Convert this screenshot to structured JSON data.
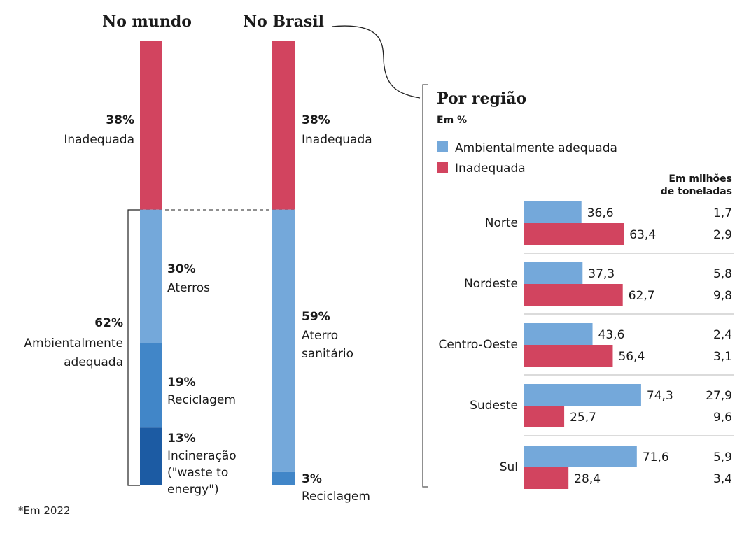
{
  "chart_data": [
    {
      "type": "bar",
      "title": "No mundo",
      "unit": "%",
      "segments": [
        {
          "pct": "38%",
          "label": "Inadequada",
          "value": 38,
          "color": "#d2445f"
        },
        {
          "pct": "30%",
          "label": "Aterros",
          "value": 30,
          "color": "#74a8da"
        },
        {
          "pct": "19%",
          "label": "Reciclagem",
          "value": 19,
          "color": "#4186c8"
        },
        {
          "pct": "13%",
          "label": "Incineração (\"waste to energy\")",
          "label_lines": [
            "Incineração",
            "(\"waste to",
            "energy\")"
          ],
          "value": 13,
          "color": "#1c5ba3"
        }
      ],
      "group": {
        "pct": "62%",
        "label": "Ambientalmente adequada",
        "label_lines": [
          "Ambientalmente",
          "adequada"
        ],
        "value": 62
      }
    },
    {
      "type": "bar",
      "title": "No Brasil",
      "unit": "%",
      "segments": [
        {
          "pct": "38%",
          "label": "Inadequada",
          "value": 38,
          "color": "#d2445f"
        },
        {
          "pct": "59%",
          "label": "Aterro sanitário",
          "label_lines": [
            "Aterro",
            "sanitário"
          ],
          "value": 59,
          "color": "#74a8da"
        },
        {
          "pct": "3%",
          "label": "Reciclagem",
          "value": 3,
          "color": "#4186c8"
        }
      ]
    },
    {
      "type": "bar",
      "orientation": "horizontal",
      "title": "Por região",
      "subtitle": "Em %",
      "legend": [
        {
          "name": "Ambientalmente adequada",
          "color": "#74a8da"
        },
        {
          "name": "Inadequada",
          "color": "#d2445f"
        }
      ],
      "tonnes_header": [
        "Em milhões",
        "de toneladas"
      ],
      "categories": [
        "Norte",
        "Nordeste",
        "Centro-Oeste",
        "Sudeste",
        "Sul"
      ],
      "series": [
        {
          "name": "Ambientalmente adequada",
          "color": "#74a8da",
          "values": [
            36.6,
            37.3,
            43.6,
            74.3,
            71.6
          ],
          "labels": [
            "36,6",
            "37,3",
            "43,6",
            "74,3",
            "71,6"
          ],
          "tonnes": [
            "1,7",
            "5,8",
            "2,4",
            "27,9",
            "5,9"
          ]
        },
        {
          "name": "Inadequada",
          "color": "#d2445f",
          "values": [
            63.4,
            62.7,
            56.4,
            25.7,
            28.4
          ],
          "labels": [
            "63,4",
            "62,7",
            "56,4",
            "25,7",
            "28,4"
          ],
          "tonnes": [
            "2,9",
            "9,8",
            "3,1",
            "9,6",
            "3,4"
          ]
        }
      ]
    }
  ],
  "footnote": "*Em 2022"
}
